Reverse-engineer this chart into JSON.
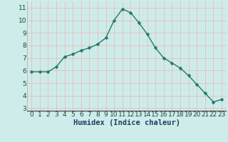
{
  "x": [
    0,
    1,
    2,
    3,
    4,
    5,
    6,
    7,
    8,
    9,
    10,
    11,
    12,
    13,
    14,
    15,
    16,
    17,
    18,
    19,
    20,
    21,
    22,
    23
  ],
  "y": [
    5.9,
    5.9,
    5.9,
    6.3,
    7.1,
    7.3,
    7.6,
    7.8,
    8.1,
    8.6,
    10.0,
    10.9,
    10.6,
    9.8,
    8.9,
    7.8,
    7.0,
    6.6,
    6.2,
    5.6,
    4.9,
    4.2,
    3.5,
    3.7
  ],
  "xlabel": "Humidex (Indice chaleur)",
  "ylim": [
    2.8,
    11.5
  ],
  "xlim": [
    -0.5,
    23.5
  ],
  "yticks": [
    3,
    4,
    5,
    6,
    7,
    8,
    9,
    10,
    11
  ],
  "xticks": [
    0,
    1,
    2,
    3,
    4,
    5,
    6,
    7,
    8,
    9,
    10,
    11,
    12,
    13,
    14,
    15,
    16,
    17,
    18,
    19,
    20,
    21,
    22,
    23
  ],
  "line_color": "#1e7a6a",
  "marker_color": "#1e7a6a",
  "bg_color": "#ceecea",
  "grid_color_major": "#f0b0b0",
  "grid_color_minor": "#c8e8e4",
  "axis_bottom_color": "#555555",
  "xlabel_fontsize": 7.5,
  "tick_fontsize": 6.5,
  "line_width": 1.0,
  "marker_size": 2.5
}
